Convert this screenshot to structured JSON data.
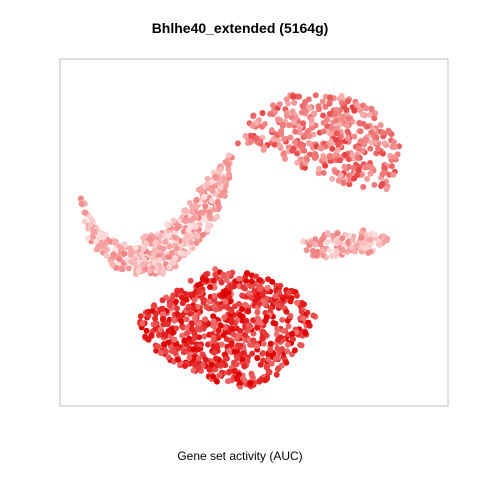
{
  "chart_data": {
    "type": "scatter",
    "title": "Bhlhe40_extended (5164g)",
    "xlabel": "Gene set activity (AUC)",
    "ylabel": "",
    "grid": false,
    "legend": "none",
    "colors": {
      "low": "#ffe0e0",
      "mid": "#f08080",
      "high": "#e00000",
      "frame": "#bfbfbf"
    },
    "regions": [
      {
        "name": "left",
        "activity": 0.25,
        "count": 420,
        "path": [
          [
            0.05,
            0.62
          ],
          [
            0.1,
            0.5
          ],
          [
            0.18,
            0.47
          ],
          [
            0.3,
            0.54
          ],
          [
            0.38,
            0.66
          ],
          [
            0.45,
            0.74
          ],
          [
            0.42,
            0.56
          ],
          [
            0.35,
            0.46
          ],
          [
            0.28,
            0.38
          ],
          [
            0.15,
            0.38
          ],
          [
            0.07,
            0.48
          ]
        ]
      },
      {
        "name": "top",
        "activity": 0.5,
        "count": 420,
        "path": [
          [
            0.45,
            0.74
          ],
          [
            0.5,
            0.84
          ],
          [
            0.6,
            0.9
          ],
          [
            0.72,
            0.9
          ],
          [
            0.82,
            0.85
          ],
          [
            0.88,
            0.74
          ],
          [
            0.85,
            0.62
          ],
          [
            0.72,
            0.64
          ],
          [
            0.6,
            0.7
          ],
          [
            0.52,
            0.74
          ]
        ]
      },
      {
        "name": "right",
        "activity": 0.25,
        "count": 120,
        "path": [
          [
            0.62,
            0.49
          ],
          [
            0.7,
            0.5
          ],
          [
            0.8,
            0.51
          ],
          [
            0.86,
            0.48
          ],
          [
            0.8,
            0.44
          ],
          [
            0.7,
            0.43
          ],
          [
            0.64,
            0.42
          ]
        ]
      },
      {
        "name": "bottom",
        "activity": 0.8,
        "count": 750,
        "path": [
          [
            0.2,
            0.26
          ],
          [
            0.22,
            0.18
          ],
          [
            0.3,
            0.12
          ],
          [
            0.4,
            0.07
          ],
          [
            0.48,
            0.05
          ],
          [
            0.56,
            0.09
          ],
          [
            0.62,
            0.16
          ],
          [
            0.66,
            0.26
          ],
          [
            0.6,
            0.34
          ],
          [
            0.5,
            0.38
          ],
          [
            0.4,
            0.4
          ],
          [
            0.3,
            0.34
          ]
        ]
      }
    ]
  }
}
